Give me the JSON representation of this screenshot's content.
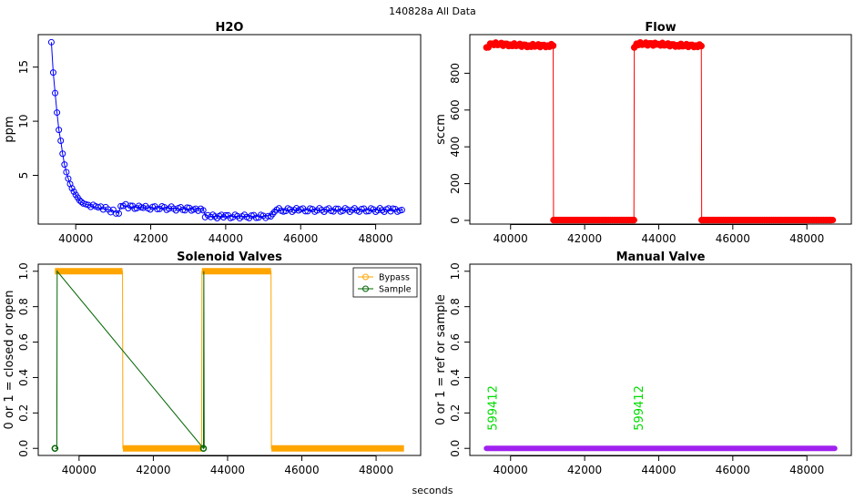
{
  "page": {
    "title": "140828a   All Data",
    "xlabel_bottom": "seconds"
  },
  "chart_data": [
    {
      "id": "h2o",
      "type": "scatter",
      "title": "H2O",
      "xlabel": "",
      "ylabel": "ppm",
      "xlim": [
        39000,
        49200
      ],
      "ylim": [
        0.5,
        18
      ],
      "xticks": [
        40000,
        42000,
        44000,
        46000,
        48000
      ],
      "yticks": [
        5,
        10,
        15
      ],
      "series": [
        {
          "color": "#0000ff",
          "x": [
            39350,
            39400,
            39450,
            39500,
            39550,
            39600,
            39650,
            39700,
            39750,
            39800,
            39850,
            39900,
            40000,
            40100,
            40200,
            40400,
            40600,
            40800,
            41000,
            41150,
            41200,
            41400,
            41800,
            42300,
            42800,
            43200,
            43400,
            43450,
            43600,
            44000,
            44500,
            45000,
            45200,
            45300,
            45600,
            46000,
            46500,
            47000,
            47500,
            48000,
            48400,
            48700
          ],
          "y": [
            17.3,
            14.5,
            12.6,
            10.8,
            9.2,
            8.2,
            7.0,
            6.0,
            5.3,
            4.7,
            4.2,
            3.8,
            3.2,
            2.7,
            2.4,
            2.2,
            2.0,
            1.9,
            1.7,
            1.5,
            2.3,
            2.1,
            2.0,
            2.0,
            1.9,
            1.9,
            1.9,
            1.3,
            1.2,
            1.2,
            1.2,
            1.2,
            1.3,
            1.8,
            1.8,
            1.8,
            1.8,
            1.8,
            1.8,
            1.8,
            1.8,
            1.8
          ]
        }
      ]
    },
    {
      "id": "flow",
      "type": "scatter",
      "title": "Flow",
      "xlabel": "",
      "ylabel": "sccm",
      "xlim": [
        38900,
        49200
      ],
      "ylim": [
        -20,
        1010
      ],
      "xticks": [
        40000,
        42000,
        44000,
        46000,
        48000
      ],
      "yticks": [
        0,
        200,
        400,
        600,
        800
      ],
      "series": [
        {
          "color": "#ff0000",
          "x": [
            39350,
            39500,
            40000,
            40500,
            41000,
            41150,
            41160,
            42000,
            43000,
            43330,
            43340,
            43400,
            44000,
            44500,
            45000,
            45150,
            45160,
            46000,
            47000,
            48000,
            48700
          ],
          "y": [
            940,
            960,
            955,
            950,
            950,
            950,
            2,
            2,
            2,
            2,
            940,
            960,
            958,
            952,
            950,
            948,
            2,
            2,
            2,
            2,
            2
          ]
        }
      ]
    },
    {
      "id": "solenoid",
      "type": "line",
      "title": "Solenoid Valves",
      "xlabel": "",
      "ylabel": "0 or 1 = closed or open",
      "xlim": [
        38900,
        49200
      ],
      "ylim": [
        -0.04,
        1.04
      ],
      "xticks": [
        40000,
        42000,
        44000,
        46000,
        48000
      ],
      "yticks": [
        0.0,
        0.2,
        0.4,
        0.6,
        0.8,
        1.0
      ],
      "legend_position": "top-right",
      "series": [
        {
          "name": "Bypass",
          "color": "#ffa500",
          "x": [
            39350,
            41170,
            41180,
            43300,
            43310,
            45170,
            45180,
            48750
          ],
          "y": [
            1,
            1,
            0,
            0,
            1,
            1,
            0,
            0
          ]
        },
        {
          "name": "Sample",
          "color": "#006400",
          "x": [
            39350,
            39400,
            39410,
            43350,
            43360,
            43370
          ],
          "y": [
            0,
            0,
            1,
            0,
            1,
            0
          ]
        }
      ]
    },
    {
      "id": "manual",
      "type": "line",
      "title": "Manual Valve",
      "xlabel": "",
      "ylabel": "0 or 1 = ref or sample",
      "xlim": [
        38900,
        49200
      ],
      "ylim": [
        -0.04,
        1.04
      ],
      "xticks": [
        40000,
        42000,
        44000,
        46000,
        48000
      ],
      "yticks": [
        0.0,
        0.2,
        0.4,
        0.6,
        0.8,
        1.0
      ],
      "series": [
        {
          "color": "#a020f0",
          "x": [
            39350,
            48750
          ],
          "y": [
            0,
            0
          ]
        }
      ],
      "annotations": [
        {
          "text": "599412",
          "x": 39500,
          "y": 0.1,
          "color": "#00dd00"
        },
        {
          "text": "599412",
          "x": 43450,
          "y": 0.1,
          "color": "#00dd00"
        }
      ]
    }
  ]
}
